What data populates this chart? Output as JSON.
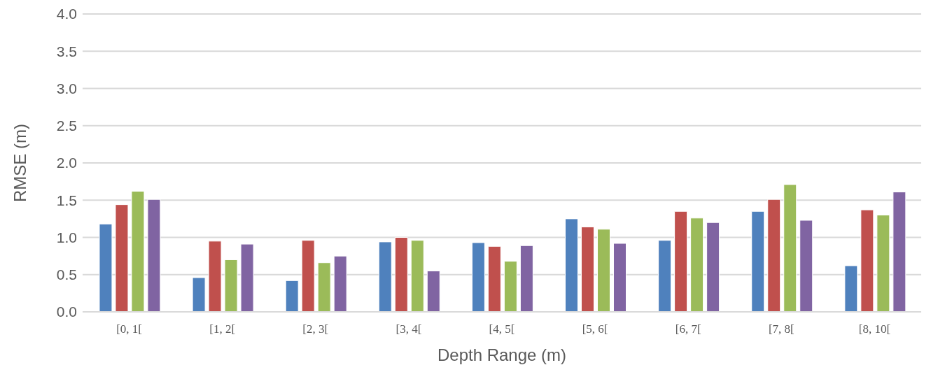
{
  "chart_data": {
    "type": "bar",
    "xlabel": "Depth Range (m)",
    "ylabel": "RMSE (m)",
    "categories": [
      "[0, 1[",
      "[1, 2[",
      "[2, 3[",
      "[3, 4[",
      "[4, 5[",
      "[5, 6[",
      "[6, 7[",
      "[7, 8[",
      "[8, 10["
    ],
    "series": [
      {
        "color": "#4f81bd",
        "values": [
          1.18,
          0.46,
          0.42,
          0.94,
          0.93,
          1.25,
          0.96,
          1.35,
          0.62
        ]
      },
      {
        "color": "#c0504d",
        "values": [
          1.44,
          0.95,
          0.96,
          1.0,
          0.88,
          1.14,
          1.35,
          1.51,
          1.37
        ]
      },
      {
        "color": "#9bbb59",
        "values": [
          1.62,
          0.7,
          0.66,
          0.96,
          0.68,
          1.11,
          1.26,
          1.71,
          1.3
        ]
      },
      {
        "color": "#8064a2",
        "values": [
          1.51,
          0.91,
          0.75,
          0.55,
          0.89,
          0.92,
          1.2,
          1.23,
          1.61
        ]
      }
    ],
    "ylim": [
      0,
      4
    ],
    "yticks": [
      {
        "value": 0,
        "label": "0.0"
      },
      {
        "value": 0.5,
        "label": "0.5"
      },
      {
        "value": 1,
        "label": "1.0"
      },
      {
        "value": 1.5,
        "label": "1.5"
      },
      {
        "value": 2,
        "label": "2.0"
      },
      {
        "value": 2.5,
        "label": "2.5"
      },
      {
        "value": 3,
        "label": "3.0"
      },
      {
        "value": 3.5,
        "label": "3.5"
      },
      {
        "value": 4,
        "label": "4.0"
      }
    ],
    "grid": "y",
    "legend": false
  }
}
